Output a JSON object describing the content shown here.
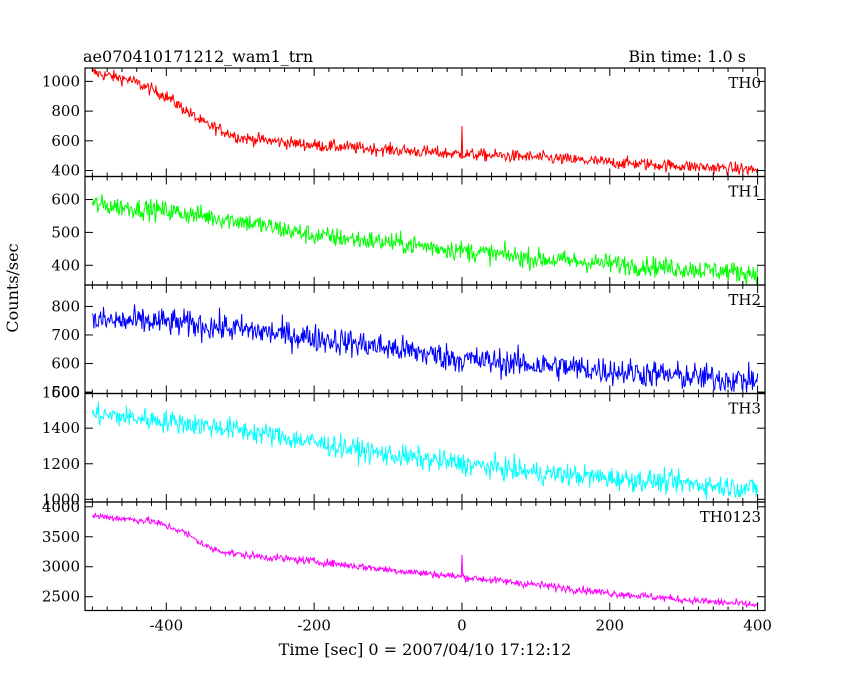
{
  "header": {
    "left_title": "ae070410171212_wam1_trn",
    "right_title": "Bin time: 1.0 s"
  },
  "axes": {
    "xlabel": "Time [sec] 0 = 2007/04/10 17:12:12",
    "ylabel": "Counts/sec",
    "xlim": [
      -510,
      410
    ],
    "x_ticks": [
      -400,
      -200,
      0,
      200,
      400
    ]
  },
  "chart_data": {
    "type": "line",
    "xlim": [
      -510,
      410
    ],
    "x_ticks": [
      -400,
      -200,
      0,
      200,
      400
    ],
    "panels": [
      {
        "name": "TH0",
        "color": "#ff0000",
        "ylim": [
          360,
          1090
        ],
        "y_ticks": [
          400,
          600,
          800,
          1000
        ],
        "points": [
          [
            -500,
            1060
          ],
          [
            -450,
            1010
          ],
          [
            -400,
            900
          ],
          [
            -350,
            720
          ],
          [
            -300,
            620
          ],
          [
            -200,
            570
          ],
          [
            -100,
            540
          ],
          [
            0,
            510
          ],
          [
            100,
            490
          ],
          [
            200,
            455
          ],
          [
            300,
            430
          ],
          [
            400,
            405
          ]
        ],
        "noise": 30,
        "spike": {
          "x": 0,
          "y": 700
        }
      },
      {
        "name": "TH1",
        "color": "#00ff00",
        "ylim": [
          340,
          670
        ],
        "y_ticks": [
          400,
          500,
          600
        ],
        "points": [
          [
            -500,
            585
          ],
          [
            -400,
            565
          ],
          [
            -300,
            535
          ],
          [
            -200,
            490
          ],
          [
            -100,
            470
          ],
          [
            0,
            445
          ],
          [
            100,
            420
          ],
          [
            200,
            405
          ],
          [
            300,
            390
          ],
          [
            400,
            375
          ]
        ],
        "noise": 22,
        "spike": null
      },
      {
        "name": "TH2",
        "color": "#0000ff",
        "ylim": [
          495,
          875
        ],
        "y_ticks": [
          500,
          600,
          700,
          800
        ],
        "points": [
          [
            -500,
            750
          ],
          [
            -400,
            745
          ],
          [
            -300,
            720
          ],
          [
            -200,
            690
          ],
          [
            -100,
            655
          ],
          [
            0,
            615
          ],
          [
            100,
            595
          ],
          [
            200,
            575
          ],
          [
            300,
            555
          ],
          [
            400,
            540
          ]
        ],
        "noise": 35,
        "spike": null
      },
      {
        "name": "TH3",
        "color": "#00ffff",
        "ylim": [
          985,
          1595
        ],
        "y_ticks": [
          1000,
          1200,
          1400,
          1600
        ],
        "points": [
          [
            -500,
            1480
          ],
          [
            -400,
            1440
          ],
          [
            -300,
            1390
          ],
          [
            -200,
            1320
          ],
          [
            -100,
            1250
          ],
          [
            0,
            1200
          ],
          [
            100,
            1150
          ],
          [
            200,
            1120
          ],
          [
            300,
            1090
          ],
          [
            400,
            1060
          ]
        ],
        "noise": 45,
        "spike": null
      },
      {
        "name": "TH0123",
        "color": "#ff00ff",
        "ylim": [
          2270,
          4080
        ],
        "y_ticks": [
          2500,
          3000,
          3500,
          4000
        ],
        "points": [
          [
            -500,
            3850
          ],
          [
            -420,
            3760
          ],
          [
            -380,
            3600
          ],
          [
            -340,
            3300
          ],
          [
            -300,
            3200
          ],
          [
            -200,
            3090
          ],
          [
            -100,
            2950
          ],
          [
            0,
            2830
          ],
          [
            100,
            2700
          ],
          [
            200,
            2560
          ],
          [
            300,
            2450
          ],
          [
            400,
            2360
          ]
        ],
        "noise": 45,
        "spike": {
          "x": 0,
          "y": 3200
        }
      }
    ]
  }
}
